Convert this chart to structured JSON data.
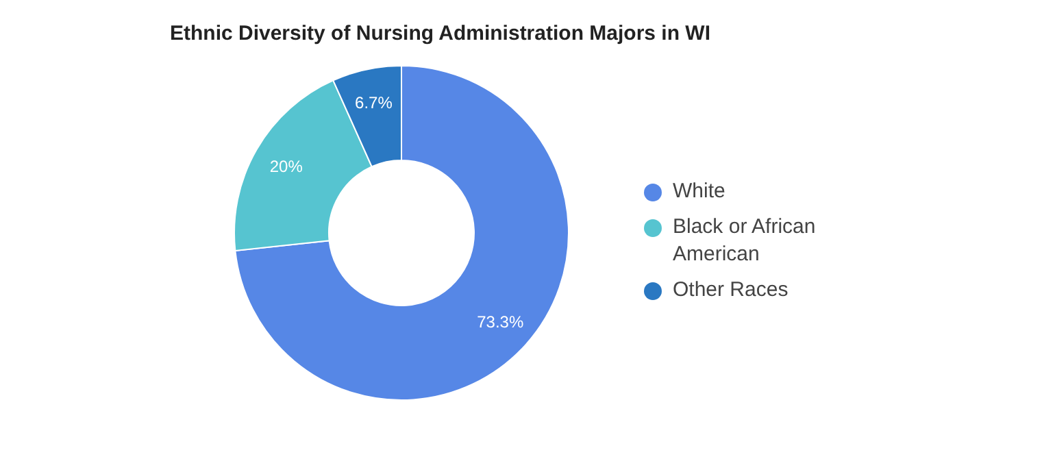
{
  "chart_data": {
    "type": "donut",
    "title": "Ethnic Diversity of Nursing Administration Majors in WI",
    "categories": [
      "White",
      "Black or African American",
      "Other Races"
    ],
    "values": [
      73.3,
      20,
      6.7
    ],
    "colors": [
      "#5687e6",
      "#56c4d0",
      "#2a78c2"
    ],
    "value_labels": [
      "73.3%",
      "20%",
      "6.7%"
    ],
    "legend": "right"
  }
}
